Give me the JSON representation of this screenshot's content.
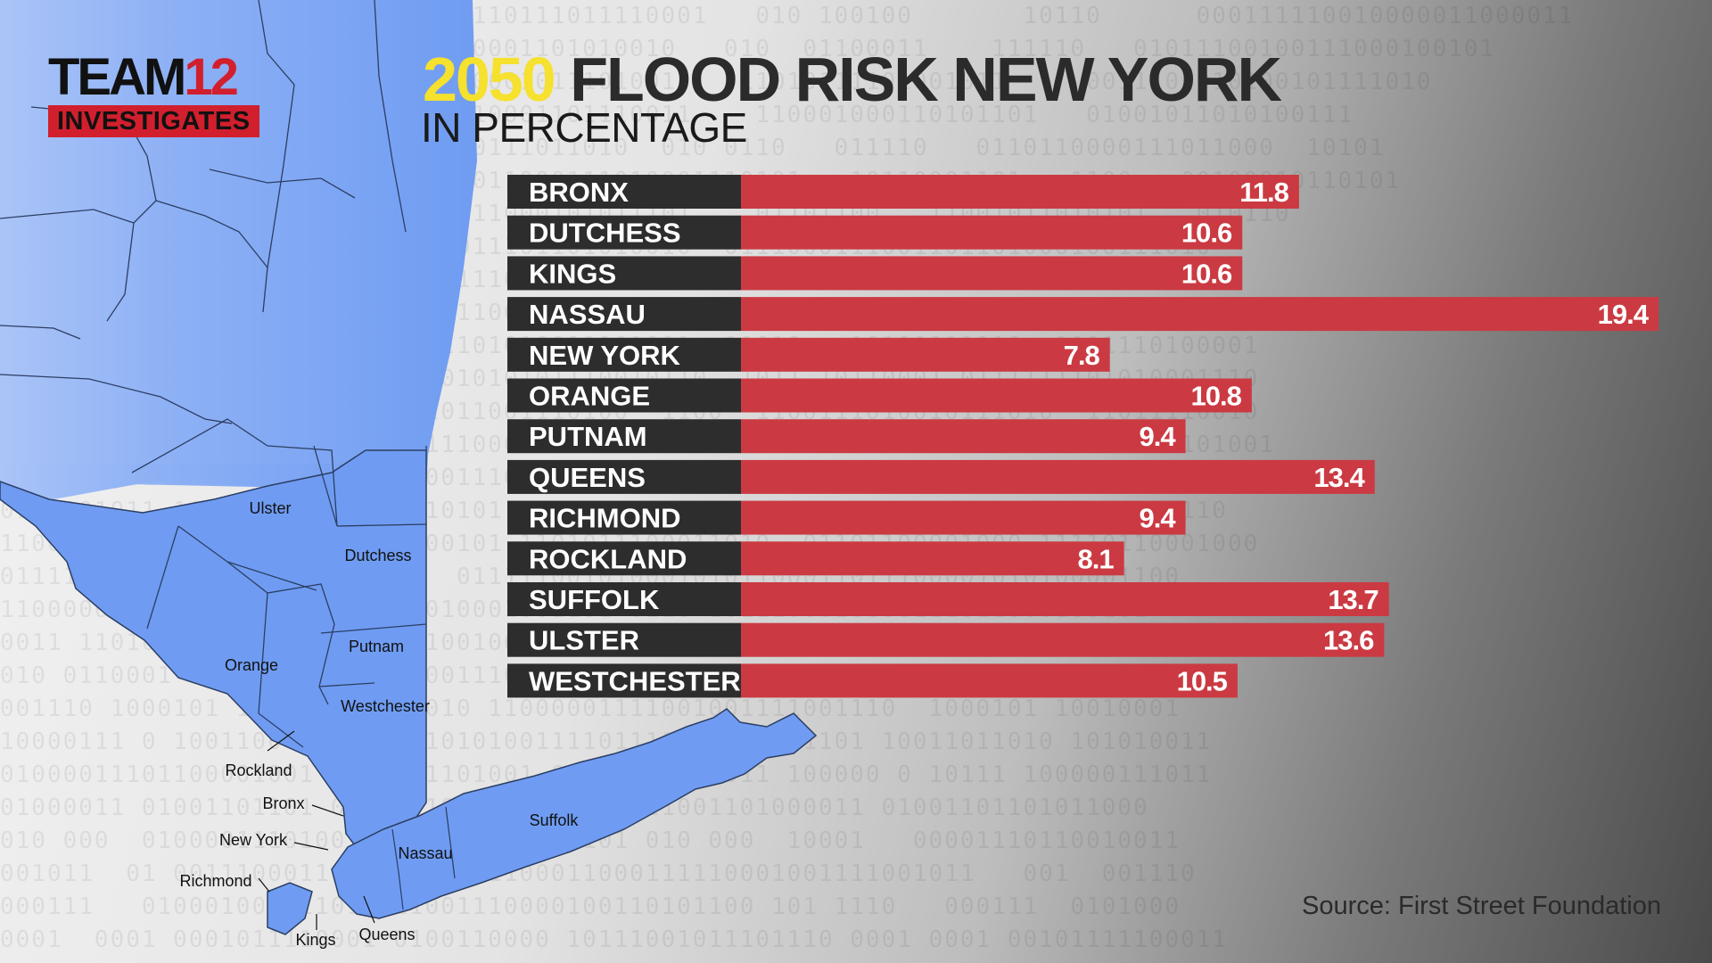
{
  "header": {
    "logo_team": "TEAM",
    "logo_number": "12",
    "logo_sub": "INVESTIGATES",
    "title_year": "2050",
    "title_rest": "FLOOD RISK NEW YORK",
    "subtitle": "IN PERCENTAGE"
  },
  "source": "Source: First Street Foundation",
  "map_labels": [
    "Ulster",
    "Dutchess",
    "Putnam",
    "Orange",
    "Westchester",
    "Rockland",
    "Bronx",
    "New York",
    "Richmond",
    "Kings",
    "Queens",
    "Nassau",
    "Suffolk"
  ],
  "colors": {
    "bar": "#cb3a42",
    "label_box": "#2d2d2d",
    "title_accent": "#f5e12e",
    "brand_red": "#d21f2d",
    "map_fill": "#6f9cf2"
  },
  "chart_data": {
    "type": "bar",
    "orientation": "horizontal",
    "categories": [
      "BRONX",
      "DUTCHESS",
      "KINGS",
      "NASSAU",
      "NEW YORK",
      "ORANGE",
      "PUTNAM",
      "QUEENS",
      "RICHMOND",
      "ROCKLAND",
      "SUFFOLK",
      "ULSTER",
      "WESTCHESTER"
    ],
    "values": [
      11.8,
      10.6,
      10.6,
      19.4,
      7.8,
      10.8,
      9.4,
      13.4,
      9.4,
      8.1,
      13.7,
      13.6,
      10.5
    ],
    "title": "2050 FLOOD RISK NEW YORK",
    "subtitle": "IN PERCENTAGE",
    "xlim": [
      0,
      19.4
    ],
    "grid": false
  }
}
